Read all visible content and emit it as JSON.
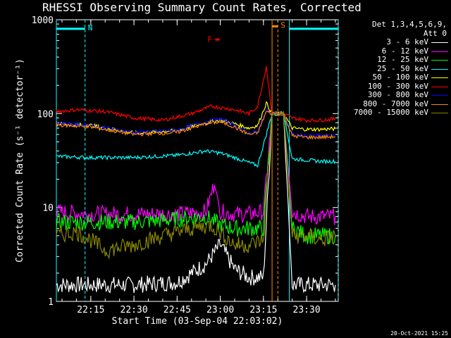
{
  "chart_data": {
    "type": "line",
    "title": "RHESSI Observing Summary Count Rates, Corrected",
    "xlabel": "Start Time (03-Sep-04 22:03:02)",
    "ylabel": "Corrected Count Rate (s⁻¹ detector⁻¹)",
    "x_ticks": [
      "22:15",
      "22:30",
      "22:45",
      "23:00",
      "23:15",
      "23:30"
    ],
    "y_ticks": [
      "1",
      "10",
      "100",
      "1000"
    ],
    "y_scale": "log",
    "ylim": [
      1,
      1000
    ],
    "xlim": [
      "22:03:02",
      "23:41:00"
    ],
    "legend_header": [
      "Det 1,3,4,5,6,9,",
      "Att 0"
    ],
    "series": [
      {
        "name": "3 - 6 keV",
        "color": "#ffffff",
        "x": [
          "22:03",
          "22:15",
          "22:30",
          "22:45",
          "22:55",
          "23:00",
          "23:05",
          "23:10",
          "23:15",
          "23:18",
          "23:22",
          "23:25",
          "23:30",
          "23:35",
          "23:40"
        ],
        "values": [
          1.5,
          1.5,
          1.5,
          1.6,
          2.5,
          4,
          2.2,
          1.8,
          1.8,
          100,
          100,
          1.5,
          1.5,
          1.5,
          1.5
        ]
      },
      {
        "name": "6 - 12 keV",
        "color": "#ff00ff",
        "x": [
          "22:03",
          "22:15",
          "22:30",
          "22:45",
          "22:55",
          "22:58",
          "23:00",
          "23:05",
          "23:10",
          "23:15",
          "23:18",
          "23:22",
          "23:25",
          "23:30",
          "23:35",
          "23:40"
        ],
        "values": [
          9,
          8.5,
          8.5,
          8.5,
          9,
          18,
          9,
          8.5,
          8.5,
          9,
          100,
          100,
          9,
          8,
          8,
          8
        ]
      },
      {
        "name": "12 - 25 keV",
        "color": "#00ff00",
        "x": [
          "22:03",
          "22:15",
          "22:30",
          "22:45",
          "22:55",
          "23:00",
          "23:05",
          "23:10",
          "23:15",
          "23:18",
          "23:22",
          "23:25",
          "23:30",
          "23:35",
          "23:40"
        ],
        "values": [
          7,
          7,
          7,
          7.5,
          8,
          6.5,
          6,
          6,
          6,
          100,
          100,
          6,
          5,
          5,
          5
        ]
      },
      {
        "name": "25 - 50 keV",
        "color": "#00ffff",
        "x": [
          "22:03",
          "22:15",
          "22:30",
          "22:45",
          "22:55",
          "23:00",
          "23:05",
          "23:10",
          "23:13",
          "23:16",
          "23:18",
          "23:22",
          "23:25",
          "23:30",
          "23:35",
          "23:40"
        ],
        "values": [
          35,
          34,
          34,
          36,
          40,
          38,
          34,
          30,
          28,
          60,
          100,
          100,
          33,
          32,
          31,
          31
        ]
      },
      {
        "name": "50 - 100 keV",
        "color": "#ffff00",
        "x": [
          "22:03",
          "22:15",
          "22:30",
          "22:45",
          "22:55",
          "23:00",
          "23:05",
          "23:10",
          "23:13",
          "23:16",
          "23:18",
          "23:22",
          "23:25",
          "23:30",
          "23:35",
          "23:40"
        ],
        "values": [
          78,
          75,
          62,
          66,
          80,
          85,
          78,
          70,
          75,
          130,
          100,
          100,
          70,
          68,
          68,
          69
        ]
      },
      {
        "name": "100 - 300 keV",
        "color": "#ff0000",
        "x": [
          "22:03",
          "22:10",
          "22:20",
          "22:30",
          "22:40",
          "22:50",
          "22:57",
          "23:05",
          "23:10",
          "23:13",
          "23:16",
          "23:18",
          "23:22",
          "23:25",
          "23:30",
          "23:35",
          "23:40"
        ],
        "values": [
          105,
          110,
          105,
          90,
          85,
          100,
          120,
          110,
          100,
          120,
          320,
          100,
          100,
          90,
          85,
          85,
          88
        ]
      },
      {
        "name": "300 - 800 keV",
        "color": "#0000ff",
        "x": [
          "22:03",
          "22:15",
          "22:30",
          "22:45",
          "22:55",
          "23:00",
          "23:05",
          "23:10",
          "23:13",
          "23:16",
          "23:18",
          "23:22",
          "23:25",
          "23:30",
          "23:35",
          "23:40"
        ],
        "values": [
          80,
          75,
          63,
          67,
          82,
          88,
          75,
          62,
          65,
          110,
          100,
          100,
          60,
          58,
          58,
          58
        ]
      },
      {
        "name": "800 - 7000 keV",
        "color": "#ff8800",
        "x": [
          "22:03",
          "22:15",
          "22:30",
          "22:45",
          "22:55",
          "23:00",
          "23:05",
          "23:10",
          "23:13",
          "23:16",
          "23:18",
          "23:22",
          "23:25",
          "23:30",
          "23:35",
          "23:40"
        ],
        "values": [
          76,
          72,
          60,
          63,
          78,
          82,
          72,
          60,
          62,
          105,
          100,
          100,
          58,
          56,
          56,
          57
        ]
      },
      {
        "name": "7000 - 15000 keV",
        "color": "#888800",
        "x": [
          "22:03",
          "22:10",
          "22:15",
          "22:20",
          "22:30",
          "22:40",
          "22:50",
          "22:57",
          "23:05",
          "23:10",
          "23:15",
          "23:18",
          "23:22",
          "23:25",
          "23:30",
          "23:35",
          "23:40"
        ],
        "values": [
          5,
          5.5,
          4.5,
          3.5,
          4,
          5,
          6,
          6.5,
          4,
          4,
          4.5,
          100,
          100,
          5,
          5,
          4.5,
          5
        ]
      }
    ],
    "annotations": [
      {
        "text": "N",
        "color": "#00ffff",
        "x_start": "22:03",
        "x_end": "22:13",
        "y": 800
      },
      {
        "text": "F",
        "color": "#ff0000",
        "x": "22:59",
        "y": 620
      },
      {
        "text": "S",
        "color": "#ff8800",
        "x_start": "23:18",
        "x_end": "23:20",
        "y": 850
      },
      {
        "text": "",
        "color": "#00ffff",
        "x_start": "23:24",
        "x_end": "23:41",
        "y": 800
      }
    ],
    "vertical_lines": [
      {
        "x": "22:03:02",
        "color": "#00ffff",
        "style": "solid"
      },
      {
        "x": "22:13",
        "color": "#00ffff",
        "style": "dashed"
      },
      {
        "x": "23:18",
        "color": "#ff8800",
        "style": "solid"
      },
      {
        "x": "23:20",
        "color": "#ff8800",
        "style": "dashed"
      },
      {
        "x": "23:24",
        "color": "#00ffff",
        "style": "solid"
      },
      {
        "x": "23:41",
        "color": "#00ffff",
        "style": "dashed"
      }
    ]
  },
  "footer_stamp": "20-Oct-2021 15:25"
}
